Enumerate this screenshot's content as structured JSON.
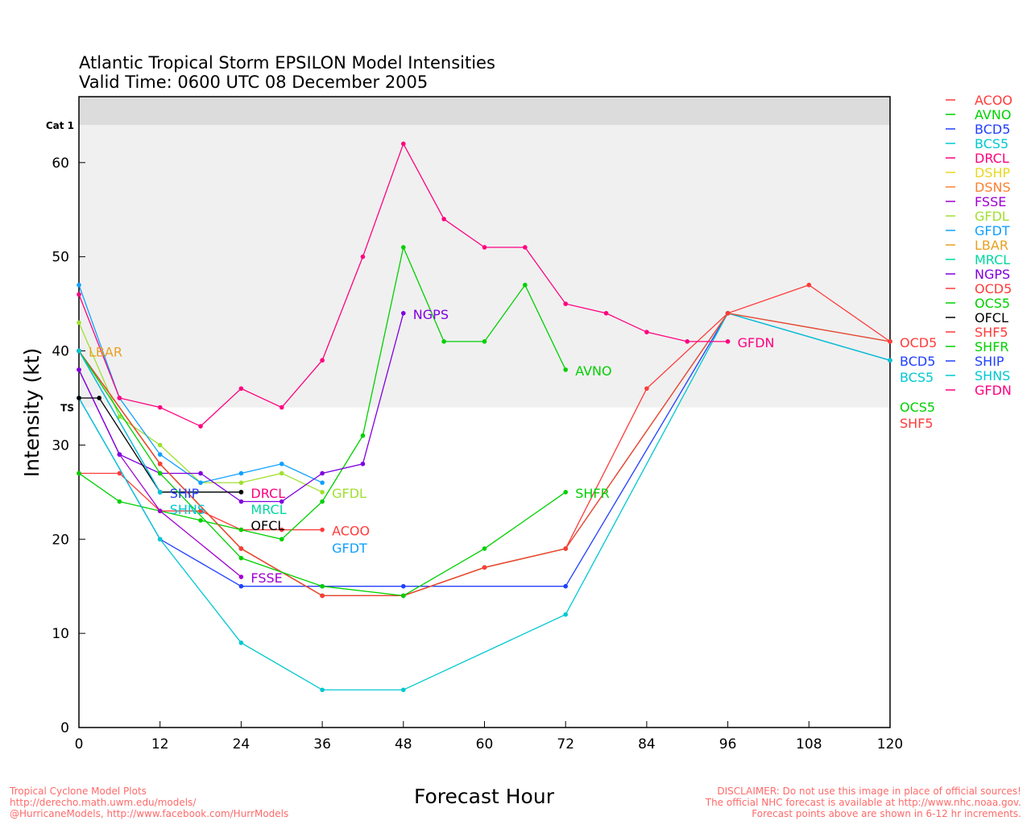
{
  "chart_data": {
    "type": "line",
    "title": "Atlantic Tropical Storm EPSILON Model Intensities",
    "subtitle": "Valid Time: 0600 UTC 08 December 2005",
    "xlabel": "Forecast Hour",
    "ylabel": "Intensity (kt)",
    "xlim": [
      0,
      120
    ],
    "ylim": [
      0,
      67
    ],
    "xticks": [
      0,
      12,
      24,
      36,
      48,
      60,
      72,
      84,
      96,
      108,
      120
    ],
    "yticks": [
      0,
      10,
      20,
      30,
      40,
      50,
      60
    ],
    "thresholds": [
      {
        "label": "TS",
        "value": 34,
        "band_color": "#f0f0f0"
      },
      {
        "label": "Cat 1",
        "value": 64,
        "band_color": "#dcdcdc"
      }
    ],
    "legend_position": "right",
    "series": [
      {
        "name": "ACOO",
        "color": "#ff3b3b",
        "label": true,
        "x": [
          0,
          6,
          12,
          18,
          24,
          30,
          36
        ],
        "y": [
          27,
          27,
          23,
          23,
          21,
          21,
          21
        ]
      },
      {
        "name": "AVNO",
        "color": "#00d000",
        "label": true,
        "x": [
          0,
          6,
          12,
          18,
          24,
          30,
          36,
          42,
          48,
          54,
          60,
          66,
          72
        ],
        "y": [
          27,
          24,
          23,
          22,
          21,
          20,
          24,
          31,
          51,
          41,
          41,
          47,
          38
        ]
      },
      {
        "name": "BCD5",
        "color": "#2040ff",
        "label": true,
        "x": [
          0,
          12,
          24,
          36,
          48,
          72,
          96,
          120
        ],
        "y": [
          35,
          20,
          15,
          15,
          15,
          15,
          44,
          39
        ]
      },
      {
        "name": "BCS5",
        "color": "#00c8d0",
        "label": true,
        "x": [
          0,
          12,
          24,
          36,
          48,
          72,
          96,
          120
        ],
        "y": [
          35,
          20,
          9,
          4,
          4,
          12,
          44,
          39
        ]
      },
      {
        "name": "DRCL",
        "color": "#ff0080",
        "label": true,
        "x": [
          12,
          24
        ],
        "y": [
          25,
          25
        ]
      },
      {
        "name": "DSHP",
        "color": "#e8d820",
        "label": false,
        "x": [
          0,
          12,
          24,
          36,
          48,
          60,
          72
        ],
        "y": [
          40,
          28,
          19,
          14,
          14,
          17,
          19
        ]
      },
      {
        "name": "DSNS",
        "color": "#ff8030",
        "label": false,
        "x": [
          0,
          12,
          24,
          36,
          48,
          60,
          72
        ],
        "y": [
          40,
          28,
          19,
          14,
          14,
          17,
          19
        ]
      },
      {
        "name": "FSSE",
        "color": "#a000d0",
        "label": true,
        "x": [
          0,
          6,
          12,
          24
        ],
        "y": [
          38,
          29,
          23,
          16
        ]
      },
      {
        "name": "GFDL",
        "color": "#a0e030",
        "label": true,
        "x": [
          0,
          6,
          12,
          18,
          24,
          30,
          36
        ],
        "y": [
          43,
          33,
          30,
          26,
          26,
          27,
          25
        ]
      },
      {
        "name": "GFDT",
        "color": "#10a0ff",
        "label": true,
        "x": [
          0,
          6,
          12,
          18,
          24,
          30,
          36
        ],
        "y": [
          47,
          35,
          29,
          26,
          27,
          28,
          26
        ]
      },
      {
        "name": "LBAR",
        "color": "#e8a020",
        "label": true,
        "x": [
          0
        ],
        "y": [
          40
        ]
      },
      {
        "name": "MRCL",
        "color": "#00d8a0",
        "label": true,
        "x": [
          12,
          24
        ],
        "y": [
          25,
          25
        ]
      },
      {
        "name": "NGPS",
        "color": "#8000e0",
        "label": true,
        "x": [
          0,
          6,
          12,
          18,
          24,
          30,
          36,
          42,
          48
        ],
        "y": [
          38,
          29,
          27,
          27,
          24,
          24,
          27,
          28,
          44
        ]
      },
      {
        "name": "OCD5",
        "color": "#ff3b3b",
        "label": true,
        "x": [
          0,
          12,
          24,
          36,
          48,
          60,
          72,
          84,
          96,
          108,
          120
        ],
        "y": [
          40,
          28,
          19,
          14,
          14,
          17,
          19,
          36,
          44,
          47,
          41
        ]
      },
      {
        "name": "OCS5",
        "color": "#00d000",
        "label": true,
        "x": [
          0,
          12,
          24,
          36,
          48,
          60,
          72,
          96,
          120
        ],
        "y": [
          40,
          28,
          19,
          14,
          14,
          17,
          19,
          44,
          41
        ]
      },
      {
        "name": "OFCL",
        "color": "#000000",
        "label": true,
        "x": [
          0,
          3,
          12,
          24
        ],
        "y": [
          35,
          35,
          25,
          25
        ]
      },
      {
        "name": "SHF5",
        "color": "#ff3b3b",
        "label": true,
        "x": [
          0,
          12,
          24,
          36,
          48,
          60,
          72,
          96,
          120
        ],
        "y": [
          40,
          28,
          19,
          14,
          14,
          17,
          19,
          44,
          41
        ]
      },
      {
        "name": "SHFR",
        "color": "#00d000",
        "label": true,
        "x": [
          0,
          12,
          24,
          36,
          48,
          60,
          72
        ],
        "y": [
          40,
          27,
          18,
          15,
          14,
          19,
          25
        ]
      },
      {
        "name": "SHIP",
        "color": "#2040ff",
        "label": true,
        "x": [
          0,
          12
        ],
        "y": [
          40,
          25
        ]
      },
      {
        "name": "SHNS",
        "color": "#00c8d0",
        "label": true,
        "x": [
          0,
          12
        ],
        "y": [
          40,
          25
        ]
      },
      {
        "name": "GFDN",
        "color": "#ff0080",
        "label": true,
        "x": [
          0,
          6,
          12,
          18,
          24,
          30,
          36,
          42,
          48,
          54,
          60,
          66,
          72,
          78,
          84,
          90,
          96
        ],
        "y": [
          46,
          35,
          34,
          32,
          36,
          34,
          39,
          50,
          62,
          54,
          51,
          51,
          45,
          44,
          42,
          41,
          41
        ]
      }
    ]
  },
  "footer": {
    "left": [
      "Tropical Cyclone Model Plots",
      "http://derecho.math.uwm.edu/models/",
      "@HurricaneModels, http://www.facebook.com/HurrModels"
    ],
    "right": [
      "DISCLAIMER: Do not use this image in place of official sources!",
      "The official NHC forecast is available at http://www.nhc.noaa.gov.",
      "Forecast points above are shown in 6-12 hr increments."
    ]
  }
}
